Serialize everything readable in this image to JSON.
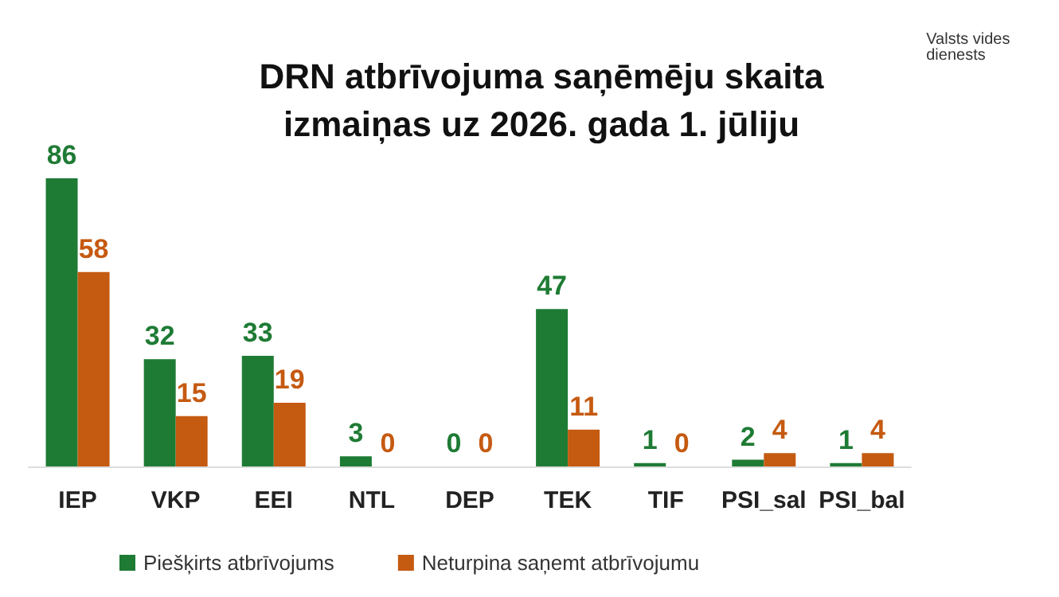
{
  "chart_data": {
    "type": "bar",
    "title": "DRN atbrīvojuma saņēmēju skaita\nizmaiņas uz 2026. gada 1. jūliju",
    "categories": [
      "IEP",
      "VKP",
      "EEI",
      "NTL",
      "DEP",
      "TEK",
      "TIF",
      "PSI_sal",
      "PSI_bal"
    ],
    "series": [
      {
        "name": "Piešķirts atbrīvojums",
        "color": "#1e7b34",
        "values": [
          86,
          32,
          33,
          3,
          0,
          47,
          1,
          2,
          1
        ]
      },
      {
        "name": "Neturpina saņemt atbrīvojumu",
        "color": "#c55a11",
        "values": [
          58,
          15,
          19,
          0,
          0,
          11,
          0,
          4,
          4
        ]
      }
    ],
    "data_labels": true,
    "legend": "bottom",
    "annotations": [
      "Valsts vides dienests"
    ]
  }
}
